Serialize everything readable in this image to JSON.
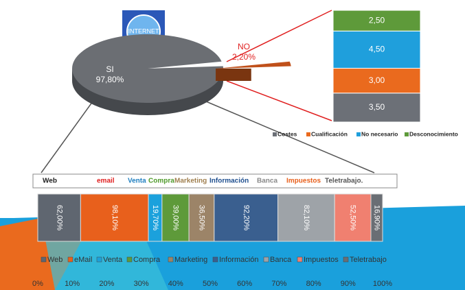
{
  "icon_label": "INTERNET",
  "chart_data": [
    {
      "type": "pie",
      "categories": [
        "SI",
        "NO"
      ],
      "values": [
        97.8,
        2.2
      ],
      "value_labels": [
        "97,80%",
        "2,20%"
      ],
      "colors": [
        "#6b6e73",
        "#7a3510"
      ],
      "label_colors": [
        "#ffffff",
        "#e02020"
      ]
    },
    {
      "type": "stacked_column",
      "legend": "bottom",
      "series": [
        {
          "name": "Costes",
          "color": "#6c7077",
          "values": [
            3.5
          ],
          "value_labels": [
            "3,50"
          ]
        },
        {
          "name": "Cualificación",
          "color": "#ea6a1e",
          "values": [
            3.0
          ],
          "value_labels": [
            "3,00"
          ]
        },
        {
          "name": "No necesario",
          "color": "#1f9fdc",
          "values": [
            4.5
          ],
          "value_labels": [
            "4,50"
          ]
        },
        {
          "name": "Desconocimiento",
          "color": "#5e9a3a",
          "values": [
            2.5
          ],
          "value_labels": [
            "2,50"
          ]
        }
      ]
    },
    {
      "type": "stacked_bar_100",
      "header_labels": [
        "Web",
        "email",
        "Venta",
        "Compra",
        "Marketing",
        "Información",
        "Banca",
        "Impuestos",
        "Teletrabajo."
      ],
      "header_colors": [
        "#222222",
        "#e02020",
        "#1f7fc0",
        "#4f9a2a",
        "#a08050",
        "#1f4f8f",
        "#8a8a8a",
        "#e8601c",
        "#555555"
      ],
      "series": [
        {
          "name": "Web",
          "color": "#5f6670",
          "values": [
            62.0
          ],
          "value_labels": [
            "62,00%"
          ]
        },
        {
          "name": "eMail",
          "color": "#e8601c",
          "values": [
            98.1
          ],
          "value_labels": [
            "98,10%"
          ]
        },
        {
          "name": "Venta",
          "color": "#1ba1dc",
          "values": [
            19.7
          ],
          "value_labels": [
            "19,70%"
          ]
        },
        {
          "name": "Compra",
          "color": "#5e9a3a",
          "values": [
            39.0
          ],
          "value_labels": [
            "39,00%"
          ]
        },
        {
          "name": "Marketing",
          "color": "#9c8468",
          "values": [
            36.5
          ],
          "value_labels": [
            "36,50%"
          ]
        },
        {
          "name": "Información",
          "color": "#3a5f8f",
          "values": [
            92.2
          ],
          "value_labels": [
            "92,20%"
          ]
        },
        {
          "name": "Banca",
          "color": "#9ea3a8",
          "values": [
            82.1
          ],
          "value_labels": [
            "82,10%"
          ]
        },
        {
          "name": "Impuestos",
          "color": "#f08070",
          "values": [
            52.5
          ],
          "value_labels": [
            "52,50%"
          ]
        },
        {
          "name": "Teletrabajo",
          "color": "#6a6e74",
          "values": [
            16.9
          ],
          "value_labels": [
            "16,90%"
          ]
        }
      ],
      "xlim": [
        0,
        100
      ],
      "xticks": [
        {
          "value": 0,
          "label": "0%"
        },
        {
          "value": 10,
          "label": "10%"
        },
        {
          "value": 20,
          "label": "20%"
        },
        {
          "value": 30,
          "label": "30%"
        },
        {
          "value": 40,
          "label": "40%"
        },
        {
          "value": 50,
          "label": "50%"
        },
        {
          "value": 60,
          "label": "60%"
        },
        {
          "value": 70,
          "label": "70%"
        },
        {
          "value": 80,
          "label": "80%"
        },
        {
          "value": 90,
          "label": "90%"
        },
        {
          "value": 100,
          "label": "100%"
        }
      ]
    }
  ]
}
